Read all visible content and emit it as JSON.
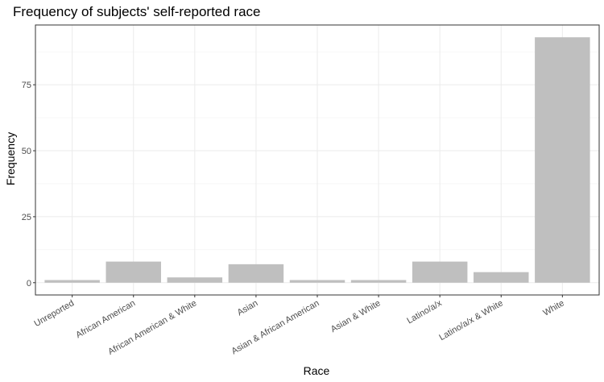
{
  "chart_data": {
    "type": "bar",
    "title": "Frequency of subjects' self-reported race",
    "xlabel": "Race",
    "ylabel": "Frequency",
    "categories": [
      "Unreported",
      "African American",
      "African American & White",
      "Asian",
      "Asian & African American",
      "Asian & White",
      "Latino/a/x",
      "Latino/a/x & White",
      "White"
    ],
    "values": [
      1,
      8,
      2,
      7,
      1,
      1,
      8,
      4,
      93
    ],
    "ylim": [
      -4.65,
      97.65
    ],
    "yticks": [
      0,
      25,
      50,
      75
    ],
    "grid": true,
    "bar_color": "#bfbfbf",
    "theme": "bw"
  }
}
